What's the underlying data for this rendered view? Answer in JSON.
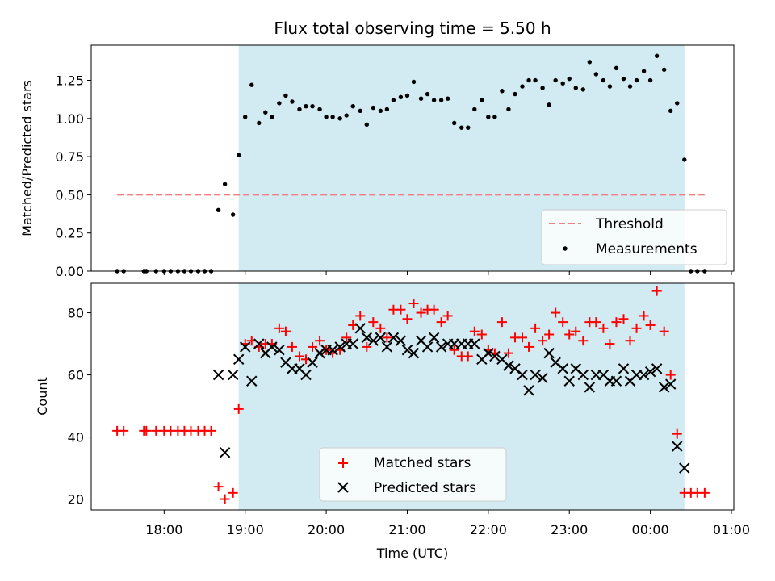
{
  "chart_data": [
    {
      "type": "scatter",
      "title": "Flux total observing time = 5.50 h",
      "ylabel": "Matched/Predicted stars",
      "xlabel": "",
      "ylim": [
        0,
        1.48
      ],
      "x_unit": "hours since 00:00 UTC (values past 24 are after midnight)",
      "yticks": [
        0.0,
        0.25,
        0.5,
        0.75,
        1.0,
        1.25
      ],
      "ytick_labels": [
        "0.00",
        "0.25",
        "0.50",
        "0.75",
        "1.00",
        "1.25"
      ],
      "observing_window": [
        18.92,
        24.42
      ],
      "threshold": {
        "name": "Threshold",
        "value": 0.5,
        "x_range": [
          17.42,
          24.67
        ],
        "color": "#f08080"
      },
      "legend": {
        "placement": "lower-right",
        "entries": [
          "Threshold",
          "Measurements"
        ]
      },
      "series": [
        {
          "name": "Measurements",
          "color": "#000000",
          "x": [
            17.42,
            17.5,
            17.75,
            17.78,
            17.9,
            18.0,
            18.08,
            18.17,
            18.25,
            18.33,
            18.42,
            18.5,
            18.58,
            18.67,
            18.75,
            18.85,
            18.92,
            19.0,
            19.08,
            19.17,
            19.25,
            19.33,
            19.42,
            19.5,
            19.58,
            19.67,
            19.75,
            19.83,
            19.92,
            20.0,
            20.08,
            20.17,
            20.25,
            20.33,
            20.42,
            20.5,
            20.58,
            20.67,
            20.75,
            20.83,
            20.92,
            21.0,
            21.08,
            21.17,
            21.25,
            21.33,
            21.42,
            21.5,
            21.58,
            21.67,
            21.75,
            21.83,
            21.92,
            22.0,
            22.08,
            22.17,
            22.25,
            22.33,
            22.42,
            22.5,
            22.58,
            22.67,
            22.75,
            22.83,
            22.92,
            23.0,
            23.08,
            23.17,
            23.25,
            23.33,
            23.42,
            23.5,
            23.58,
            23.67,
            23.75,
            23.83,
            23.92,
            24.0,
            24.08,
            24.17,
            24.25,
            24.33,
            24.42,
            24.5,
            24.58,
            24.67
          ],
          "y": [
            0,
            0,
            0,
            0,
            0,
            0,
            0,
            0,
            0,
            0,
            0,
            0,
            0,
            0.4,
            0.57,
            0.37,
            0.76,
            1.01,
            1.22,
            0.97,
            1.04,
            1.01,
            1.1,
            1.15,
            1.11,
            1.06,
            1.08,
            1.08,
            1.06,
            1.01,
            1.01,
            1.0,
            1.02,
            1.08,
            1.05,
            0.96,
            1.07,
            1.05,
            1.06,
            1.12,
            1.14,
            1.15,
            1.24,
            1.13,
            1.16,
            1.12,
            1.12,
            1.13,
            0.97,
            0.94,
            0.94,
            1.06,
            1.12,
            1.01,
            1.01,
            1.18,
            1.06,
            1.16,
            1.21,
            1.25,
            1.25,
            1.2,
            1.09,
            1.25,
            1.23,
            1.26,
            1.2,
            1.19,
            1.37,
            1.29,
            1.25,
            1.21,
            1.33,
            1.26,
            1.21,
            1.25,
            1.31,
            1.25,
            1.41,
            1.32,
            1.05,
            1.1,
            0.73,
            0,
            0,
            0
          ]
        }
      ]
    },
    {
      "type": "scatter",
      "title": "",
      "xlabel": "Time (UTC)",
      "ylabel": "Count",
      "ylim": [
        16.5,
        89.5
      ],
      "xlim": [
        17.1,
        25.03
      ],
      "x_unit": "hours since 00:00 UTC (values past 24 are after midnight)",
      "xticks": [
        18,
        19,
        20,
        21,
        22,
        23,
        24,
        25
      ],
      "xtick_labels": [
        "18:00",
        "19:00",
        "20:00",
        "21:00",
        "22:00",
        "23:00",
        "00:00",
        "01:00"
      ],
      "yticks": [
        20,
        40,
        60,
        80
      ],
      "ytick_labels": [
        "20",
        "40",
        "60",
        "80"
      ],
      "observing_window": [
        18.92,
        24.42
      ],
      "legend": {
        "placement": "lower-center",
        "entries": [
          "Matched stars",
          "Predicted stars"
        ]
      },
      "series": [
        {
          "name": "Matched stars",
          "marker": "+",
          "color": "#ff0000",
          "x": [
            17.42,
            17.5,
            17.75,
            17.78,
            17.9,
            18.0,
            18.08,
            18.17,
            18.25,
            18.33,
            18.42,
            18.5,
            18.58,
            18.67,
            18.75,
            18.85,
            18.92,
            19.0,
            19.08,
            19.17,
            19.25,
            19.33,
            19.42,
            19.5,
            19.58,
            19.67,
            19.75,
            19.83,
            19.92,
            20.0,
            20.08,
            20.17,
            20.25,
            20.33,
            20.42,
            20.5,
            20.58,
            20.67,
            20.75,
            20.83,
            20.92,
            21.0,
            21.08,
            21.17,
            21.25,
            21.33,
            21.42,
            21.5,
            21.58,
            21.67,
            21.75,
            21.83,
            21.92,
            22.0,
            22.08,
            22.17,
            22.25,
            22.33,
            22.42,
            22.5,
            22.58,
            22.67,
            22.75,
            22.83,
            22.92,
            23.0,
            23.08,
            23.17,
            23.25,
            23.33,
            23.42,
            23.5,
            23.58,
            23.67,
            23.75,
            23.83,
            23.92,
            24.0,
            24.08,
            24.17,
            24.25,
            24.33,
            24.42,
            24.5,
            24.58,
            24.67
          ],
          "y": [
            42,
            42,
            42,
            42,
            42,
            42,
            42,
            42,
            42,
            42,
            42,
            42,
            42,
            24,
            20,
            22,
            49,
            70,
            71,
            69,
            70,
            70,
            75,
            74,
            69,
            66,
            65,
            69,
            71,
            68,
            67,
            68,
            72,
            76,
            79,
            69,
            77,
            75,
            72,
            81,
            81,
            78,
            83,
            80,
            81,
            81,
            77,
            79,
            68,
            66,
            66,
            74,
            73,
            68,
            67,
            77,
            67,
            72,
            72,
            69,
            75,
            71,
            73,
            80,
            77,
            73,
            74,
            71,
            77,
            77,
            75,
            70,
            77,
            78,
            71,
            75,
            79,
            76,
            87,
            74,
            60,
            41,
            22,
            22,
            22,
            22
          ]
        },
        {
          "name": "Predicted stars",
          "marker": "x",
          "color": "#000000",
          "x": [
            18.67,
            18.75,
            18.85,
            18.92,
            19.0,
            19.08,
            19.17,
            19.25,
            19.33,
            19.42,
            19.5,
            19.58,
            19.67,
            19.75,
            19.83,
            19.92,
            20.0,
            20.08,
            20.17,
            20.25,
            20.33,
            20.42,
            20.5,
            20.58,
            20.67,
            20.75,
            20.83,
            20.92,
            21.0,
            21.08,
            21.17,
            21.25,
            21.33,
            21.42,
            21.5,
            21.58,
            21.67,
            21.75,
            21.83,
            21.92,
            22.0,
            22.08,
            22.17,
            22.25,
            22.33,
            22.42,
            22.5,
            22.58,
            22.67,
            22.75,
            22.83,
            22.92,
            23.0,
            23.08,
            23.17,
            23.25,
            23.33,
            23.42,
            23.5,
            23.58,
            23.67,
            23.75,
            23.83,
            23.92,
            24.0,
            24.08,
            24.17,
            24.25,
            24.33,
            24.42
          ],
          "y": [
            60,
            35,
            60,
            65,
            69,
            58,
            70,
            67,
            69,
            68,
            64,
            62,
            62,
            60,
            64,
            67,
            68,
            68,
            69,
            70,
            70,
            75,
            72,
            71,
            72,
            69,
            72,
            71,
            68,
            67,
            71,
            69,
            72,
            69,
            70,
            70,
            70,
            70,
            70,
            65,
            67,
            66,
            65,
            63,
            62,
            60,
            55,
            60,
            59,
            67,
            64,
            62,
            58,
            62,
            60,
            56,
            60,
            60,
            58,
            58,
            62,
            58,
            60,
            60,
            61,
            62,
            56,
            57,
            37,
            30
          ]
        }
      ]
    }
  ]
}
